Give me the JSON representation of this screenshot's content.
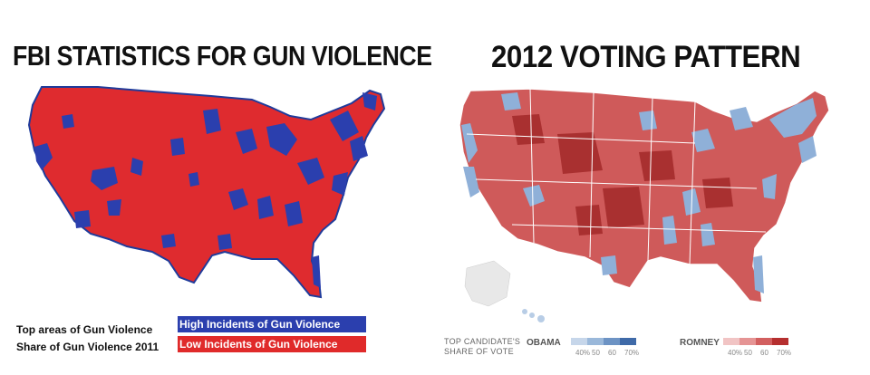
{
  "left": {
    "title": "FBI STATISTICS FOR GUN VIOLENCE",
    "legend": {
      "line1": "Top areas of Gun Violence",
      "line2": "Share of Gun Violence 2011",
      "high_label": "High Incidents of Gun Violence",
      "low_label": "Low Incidents of Gun Violence",
      "high_color": "#2b3fae",
      "low_color": "#e02a2a"
    }
  },
  "right": {
    "title": "2012 VOTING PATTERN",
    "legend": {
      "caption_line1": "TOP CANDIDATE'S",
      "caption_line2": "SHARE OF VOTE",
      "obama_label": "OBAMA",
      "romney_label": "ROMNEY",
      "ticks": [
        "40%",
        "50",
        "60",
        "70%"
      ],
      "obama_colors": [
        "#c6d6ea",
        "#9ab8da",
        "#6d93c4",
        "#3f6aa8"
      ],
      "romney_colors": [
        "#f1c4c4",
        "#e59494",
        "#d25f5f",
        "#b52f2f"
      ]
    }
  }
}
